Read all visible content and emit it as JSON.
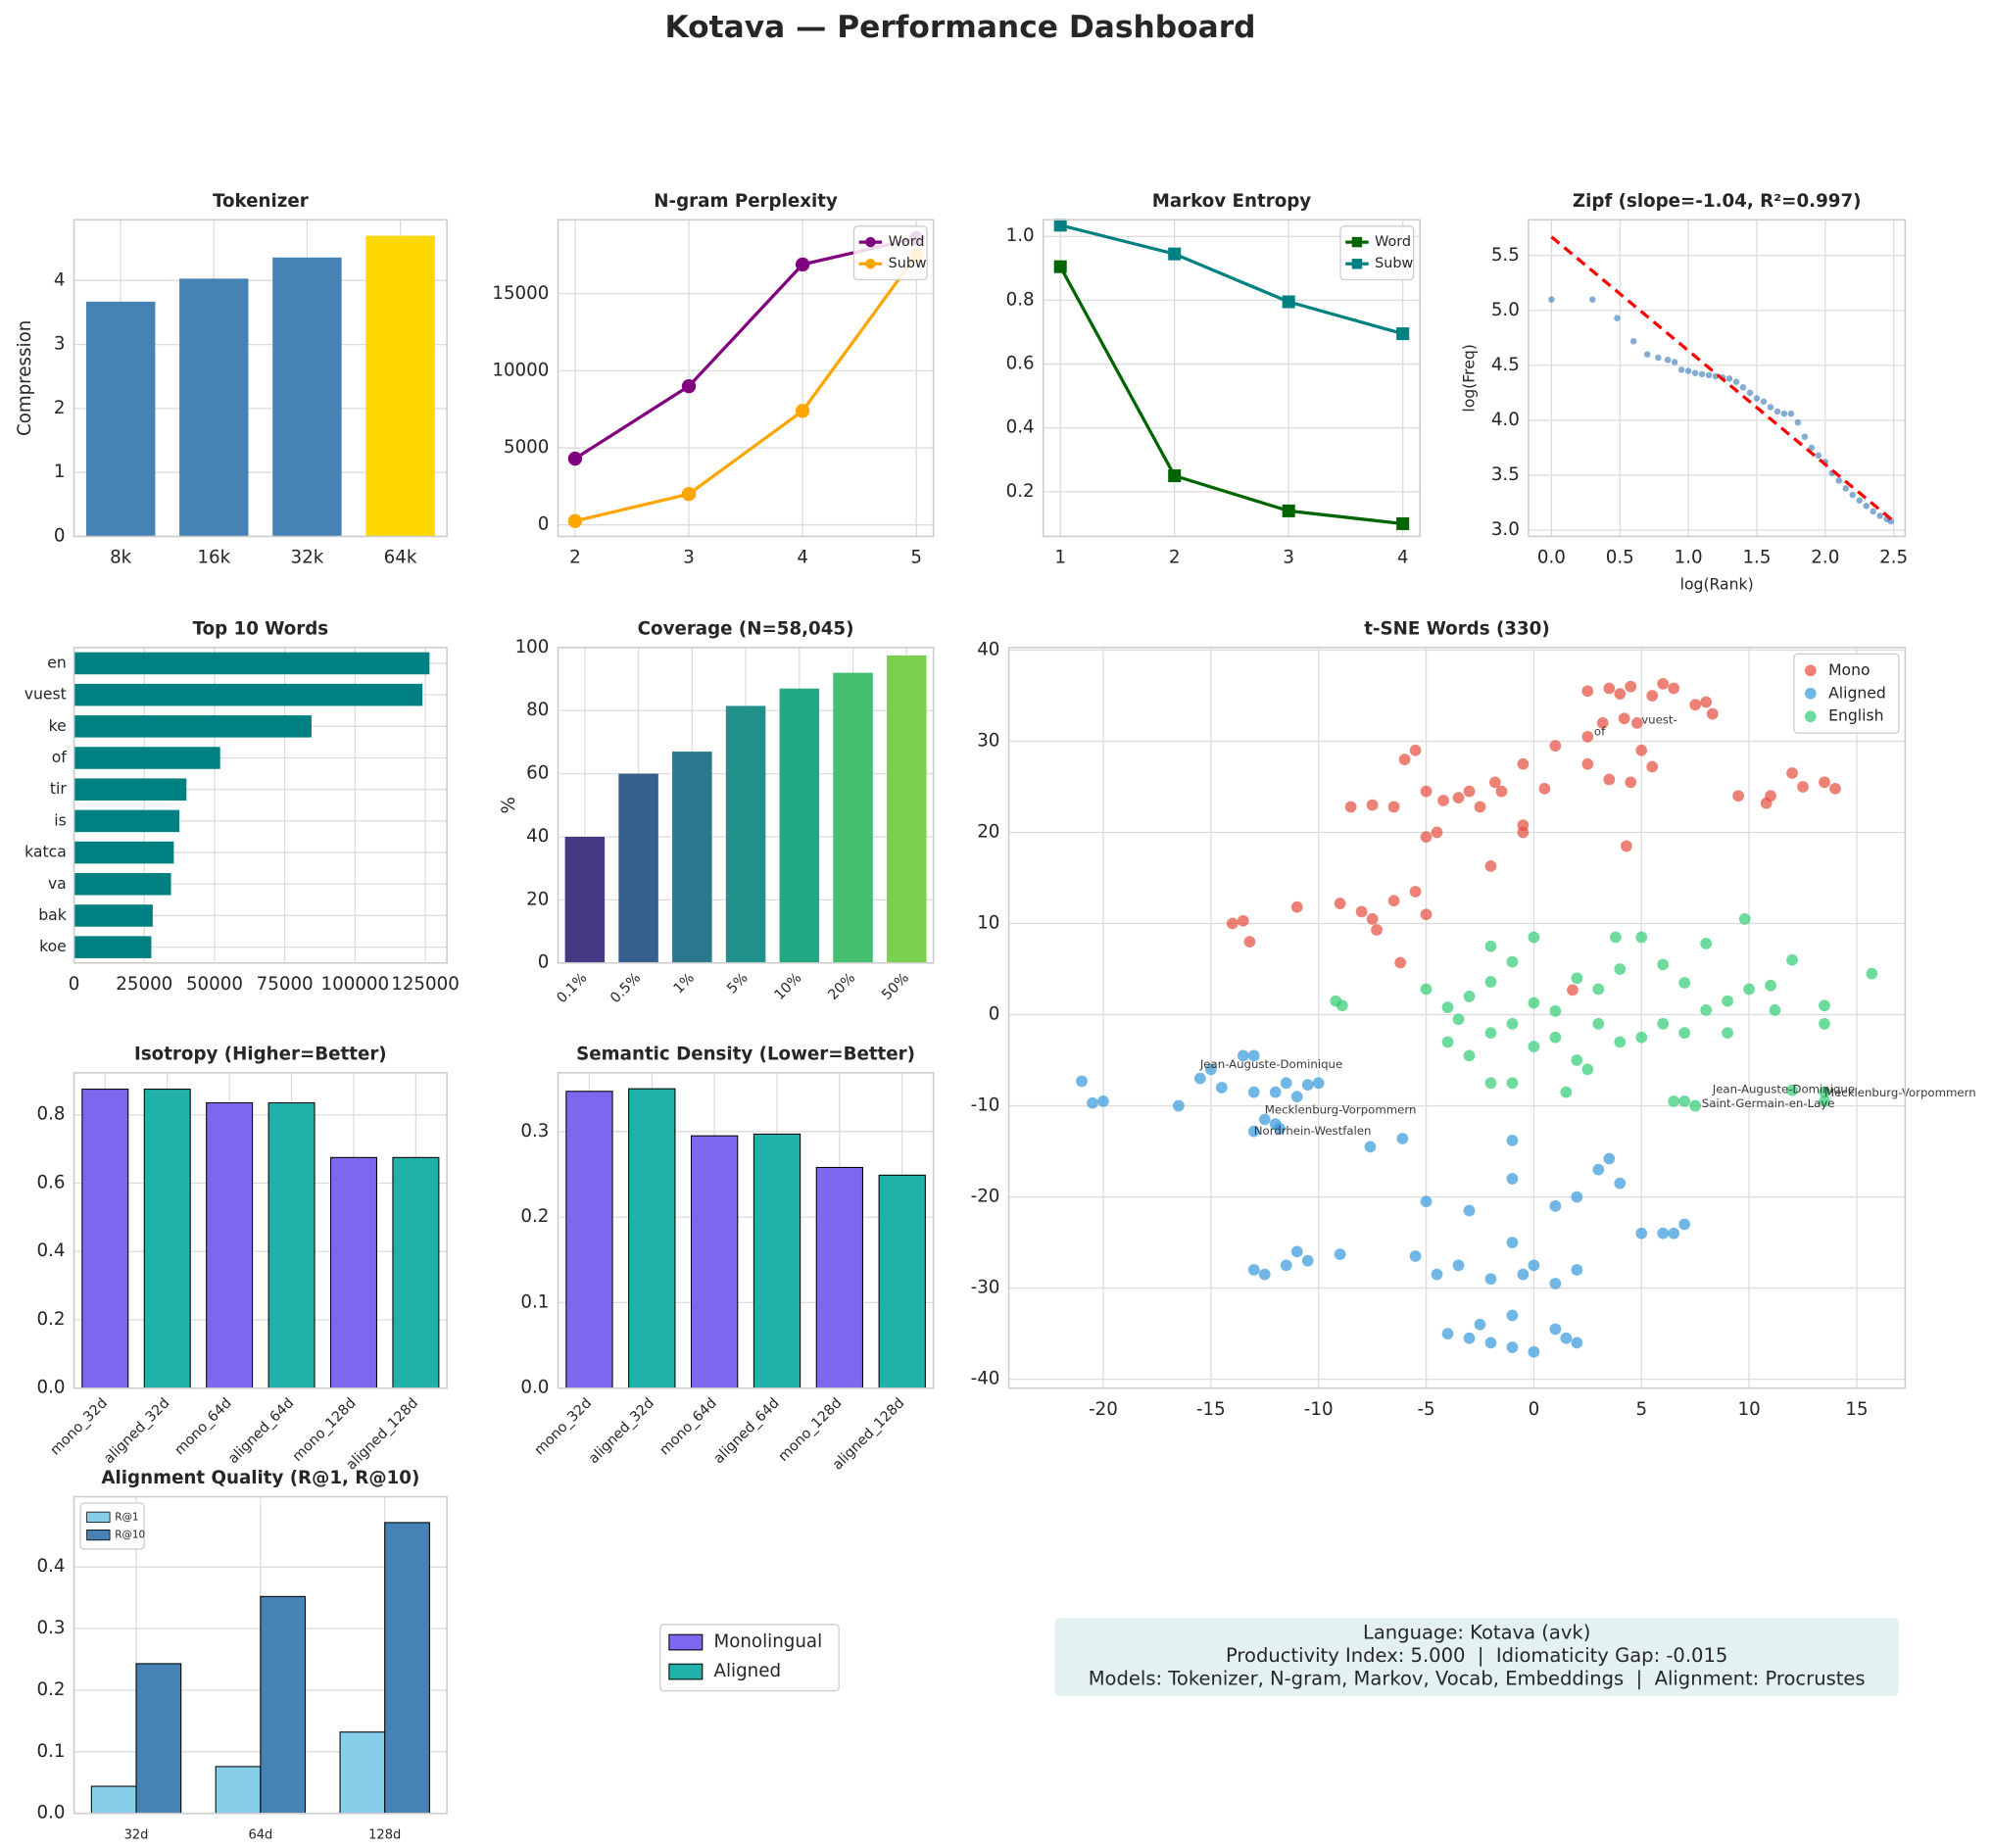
{
  "title": "Kotava — Performance Dashboard",
  "legend": [
    {
      "name": "Monolingual",
      "color": "#7b68ee"
    },
    {
      "name": "Aligned",
      "color": "#20b2aa"
    }
  ],
  "info_box": [
    "Language: Kotava (avk)",
    "Productivity Index: 5.000  |  Idiomaticity Gap: -0.015",
    "Models: Tokenizer, N-gram, Markov, Vocab, Embeddings  |  Alignment: Procrustes"
  ],
  "chart_data": [
    {
      "type": "bar",
      "title": "Tokenizer",
      "ylabel": "Compression",
      "categories": [
        "8k",
        "16k",
        "32k",
        "64k"
      ],
      "values": [
        3.67,
        4.03,
        4.36,
        4.7
      ],
      "colors": [
        "#4682b4",
        "#4682b4",
        "#4682b4",
        "#ffd700"
      ],
      "ylim": [
        0,
        4.95
      ],
      "yticks": [
        0,
        1,
        2,
        3,
        4
      ],
      "grid": true
    },
    {
      "type": "line",
      "title": "N-gram Perplexity",
      "x": [
        2,
        3,
        4,
        5
      ],
      "xlim": [
        1.85,
        5.15
      ],
      "xticks": [
        2,
        3,
        4,
        5
      ],
      "ylim": [
        -750,
        19800
      ],
      "yticks": [
        0,
        5000,
        10000,
        15000
      ],
      "grid": true,
      "marker": "circle",
      "legend": "upper right",
      "series": [
        {
          "name": "Word",
          "color": "#800080",
          "values": [
            4300,
            9000,
            16900,
            18600
          ]
        },
        {
          "name": "Subw",
          "color": "#ffa500",
          "values": [
            250,
            2000,
            7400,
            17500
          ]
        }
      ]
    },
    {
      "type": "line",
      "title": "Markov Entropy",
      "x": [
        1,
        2,
        3,
        4
      ],
      "xlim": [
        0.85,
        4.15
      ],
      "xticks": [
        1,
        2,
        3,
        4
      ],
      "ylim": [
        0.06,
        1.052
      ],
      "yticks": [
        0.2,
        0.4,
        0.6,
        0.8,
        {
          "value": 1,
          "label": "1.0"
        }
      ],
      "grid": true,
      "marker": "square",
      "legend": "upper right",
      "series": [
        {
          "name": "Word",
          "color": "#006400",
          "values": [
            0.905,
            0.25,
            0.14,
            0.1
          ]
        },
        {
          "name": "Subw",
          "color": "#008080",
          "values": [
            1.035,
            0.945,
            0.795,
            0.695
          ]
        }
      ]
    },
    {
      "type": "scatter",
      "title": "Zipf (slope=-1.04, R²=0.997)",
      "xlabel": "log(Rank)",
      "ylabel": "log(Freq)",
      "xlim": [
        -0.168,
        2.584
      ],
      "xticks": [
        {
          "value": 0,
          "label": "0.0"
        },
        0.5,
        {
          "value": 1,
          "label": "1.0"
        },
        1.5,
        {
          "value": 2,
          "label": "2.0"
        },
        2.5
      ],
      "ylim": [
        2.942,
        5.826
      ],
      "yticks": [
        {
          "value": 3,
          "label": "3.0"
        },
        3.5,
        {
          "value": 4,
          "label": "4.0"
        },
        4.5,
        {
          "value": 5,
          "label": "5.0"
        },
        5.5
      ],
      "grid": true,
      "alpha": 0.6,
      "series": [
        {
          "color": "#3274b5",
          "x": [
            0,
            0.3,
            0.48,
            0.6,
            0.7,
            0.78,
            0.85,
            0.9,
            0.95,
            1.0,
            1.05,
            1.1,
            1.15,
            1.2,
            1.25,
            1.3,
            1.35,
            1.4,
            1.45,
            1.5,
            1.55,
            1.6,
            1.65,
            1.7,
            1.75,
            1.8,
            1.85,
            1.9,
            1.95,
            2.0,
            2.05,
            2.1,
            2.15,
            2.2,
            2.25,
            2.3,
            2.35,
            2.4,
            2.45,
            2.48
          ],
          "values": [
            5.1,
            5.1,
            4.93,
            4.72,
            4.6,
            4.57,
            4.55,
            4.53,
            4.46,
            4.45,
            4.43,
            4.42,
            4.41,
            4.4,
            4.39,
            4.38,
            4.35,
            4.3,
            4.25,
            4.2,
            4.17,
            4.12,
            4.08,
            4.06,
            4.06,
            3.98,
            3.85,
            3.75,
            3.68,
            3.62,
            3.52,
            3.45,
            3.38,
            3.32,
            3.27,
            3.22,
            3.17,
            3.13,
            3.1,
            3.08
          ]
        }
      ],
      "fit": {
        "x": [
          0,
          2.5
        ],
        "y": [
          5.67,
          3.08
        ],
        "color": "#ff0000"
      }
    },
    {
      "type": "barh",
      "title": "Top 10 Words",
      "categories": [
        "en",
        "vuest",
        "ke",
        "of",
        "tir",
        "is",
        "katca",
        "va",
        "bak",
        "koe"
      ],
      "values": [
        126500,
        124000,
        84500,
        52000,
        40000,
        37500,
        35500,
        34500,
        28000,
        27500
      ],
      "color": "#008080",
      "xlim": [
        0,
        132700
      ],
      "xticks": [
        0,
        25000,
        50000,
        75000,
        100000,
        125000
      ],
      "grid": true
    },
    {
      "type": "bar",
      "title": "Coverage (N=58,045)",
      "ylabel": "%",
      "categories": [
        "0.1%",
        "0.5%",
        "1%",
        "5%",
        "10%",
        "20%",
        "50%"
      ],
      "values": [
        40,
        60,
        67,
        81.5,
        87,
        92,
        97.5
      ],
      "colors": [
        "#443983",
        "#355f8d",
        "#2a788e",
        "#21918c",
        "#22a884",
        "#44bf70",
        "#7ad151"
      ],
      "ylim": [
        0,
        100
      ],
      "yticks": [
        0,
        20,
        40,
        60,
        80,
        100
      ],
      "grid": true,
      "xtick_rotation": 45
    },
    {
      "type": "scatter",
      "title": "t-SNE Words (330)",
      "xlim": [
        -24.39,
        17.25
      ],
      "xticks": [
        -20,
        -15,
        -10,
        -5,
        0,
        5,
        10,
        15
      ],
      "ylim": [
        -40.98,
        40.28
      ],
      "yticks": [
        -40,
        -30,
        -20,
        -10,
        0,
        10,
        20,
        30,
        40
      ],
      "grid": true,
      "alpha": 0.7,
      "legend": "upper right",
      "series": [
        {
          "name": "Mono",
          "color": "#e74c3c",
          "x": [
            2.5,
            3.5,
            4,
            4.5,
            5.5,
            6,
            6.5,
            7.5,
            8,
            8.3,
            3.2,
            4.2,
            4.8,
            2.5,
            1,
            -0.5,
            -1.8,
            -3,
            -5.5,
            -6,
            -8.5,
            -7.5,
            -6.5,
            -5,
            -4.2,
            -3.5,
            -2.5,
            -1.5,
            0.5,
            -5,
            -4.5,
            -0.5,
            -0.5,
            2.5,
            3.5,
            4.5,
            4.3,
            -2,
            -14,
            -13.5,
            -13.2,
            -11,
            -9,
            -8,
            -7.5,
            -6.5,
            -5.5,
            -5,
            -6.2,
            9.5,
            11,
            12,
            12.5,
            13.5,
            14,
            1.8,
            5,
            5.5,
            10.8,
            -7.3
          ],
          "values": [
            35.5,
            35.8,
            35.2,
            36,
            35,
            36.3,
            35.8,
            34,
            34.3,
            33,
            32,
            32.5,
            32,
            30.5,
            29.5,
            27.5,
            25.5,
            24.5,
            29,
            28,
            22.8,
            23,
            22.8,
            24.5,
            23.5,
            23.8,
            22.8,
            24.5,
            24.8,
            19.5,
            20,
            20.8,
            20,
            27.5,
            25.8,
            25.5,
            18.5,
            16.3,
            10,
            10.3,
            8,
            11.8,
            12.2,
            11.3,
            10.5,
            12.5,
            13.5,
            11,
            5.7,
            24,
            24,
            26.5,
            25,
            25.5,
            24.8,
            2.7,
            29,
            27.2,
            23.2,
            9.3
          ]
        },
        {
          "name": "Aligned",
          "color": "#3498db",
          "x": [
            -21,
            -20.5,
            -20,
            -16.5,
            -15.5,
            -15,
            -14.5,
            -13.5,
            -13,
            -13,
            -12,
            -11.5,
            -11,
            -10,
            -10.5,
            -12.5,
            -13,
            -12,
            -11.8,
            -7.6,
            -6.1,
            -1,
            -5,
            -3,
            -1,
            1,
            2,
            3,
            3.5,
            4,
            -13,
            -12.5,
            -11.5,
            -11,
            -10.5,
            -9,
            -5.5,
            -4.5,
            -3.5,
            -2,
            -1,
            -0.5,
            0,
            1,
            2,
            5,
            6,
            7,
            6.5,
            -4,
            -3,
            -2,
            -1,
            0,
            1,
            2,
            -1,
            1.5,
            -2.5
          ],
          "values": [
            -7.3,
            -9.7,
            -9.5,
            -10,
            -7,
            -6,
            -8,
            -4.5,
            -4.5,
            -8.5,
            -8.5,
            -7.5,
            -9,
            -7.5,
            -7.7,
            -11.5,
            -12.8,
            -12,
            -12.5,
            -14.5,
            -13.6,
            -13.8,
            -20.5,
            -21.5,
            -18,
            -21,
            -20,
            -17,
            -15.8,
            -18.5,
            -28,
            -28.5,
            -27.5,
            -26,
            -27,
            -26.3,
            -26.5,
            -28.5,
            -27.5,
            -29,
            -25,
            -28.5,
            -27.5,
            -29.5,
            -28,
            -24,
            -24,
            -23,
            -24,
            -35,
            -35.5,
            -36,
            -36.5,
            -37,
            -34.5,
            -36,
            -33,
            -35.5,
            -34
          ]
        },
        {
          "name": "English",
          "color": "#2ecc71",
          "x": [
            -5,
            -4,
            -3,
            -2,
            -1,
            0,
            1,
            2,
            3,
            4,
            5,
            6,
            7,
            8,
            9,
            10,
            11,
            12,
            -4,
            -3,
            -2,
            -1,
            0,
            1,
            2,
            3,
            4,
            5,
            6,
            7,
            8,
            9,
            -2,
            -1,
            2.5,
            6.5,
            7,
            7.5,
            12,
            13.5,
            13.5,
            15.7,
            13.5,
            13.5,
            -8.9,
            -9.2,
            9.8,
            -2,
            0,
            3.8,
            -3.5,
            11.2,
            1.5
          ],
          "values": [
            2.8,
            0.8,
            2,
            3.6,
            5.8,
            1.3,
            0.4,
            4,
            2.8,
            5,
            8.5,
            5.5,
            3.5,
            7.8,
            1.5,
            2.8,
            3.2,
            6,
            -3,
            -4.5,
            -2,
            -1,
            -3.5,
            -2.5,
            -5,
            -1,
            -3,
            -2.5,
            -1,
            -2,
            0.5,
            -2,
            -7.5,
            -7.5,
            -6,
            -9.5,
            -9.5,
            -10,
            -8.3,
            -8.5,
            -9.5,
            4.5,
            1,
            -1,
            1,
            1.5,
            10.5,
            7.5,
            8.5,
            8.5,
            -0.5,
            0.5,
            -8.5
          ]
        }
      ],
      "annotations": [
        {
          "text": "Jean-Auguste-Dominique",
          "x": -15.5,
          "y": -5.5,
          "color": "#3498db"
        },
        {
          "text": "Mecklenburg-Vorpommern",
          "x": -12.5,
          "y": -10.5,
          "color": "#3498db"
        },
        {
          "text": "Nordrhein-Westfalen",
          "x": -13,
          "y": -12.8,
          "color": "#3498db"
        },
        {
          "text": "Saint-Germain-en-Laye",
          "x": 7.8,
          "y": -9.8,
          "color": "#2ecc71"
        },
        {
          "text": "Jean-Auguste-Dominique",
          "x": 8.3,
          "y": -8.2,
          "color": "#2ecc71"
        },
        {
          "text": "Mecklenburg-Vorpommern",
          "x": 13.5,
          "y": -8.6,
          "color": "#2ecc71"
        },
        {
          "text": "of",
          "x": 2.8,
          "y": 31,
          "color": "#e74c3c"
        },
        {
          "text": "vuest-",
          "x": 5,
          "y": 32.3,
          "color": "#e74c3c"
        }
      ]
    },
    {
      "type": "bar",
      "title": "Isotropy (Higher=Better)",
      "categories": [
        "mono_32d",
        "aligned_32d",
        "mono_64d",
        "aligned_64d",
        "mono_128d",
        "aligned_128d"
      ],
      "values": [
        0.875,
        0.875,
        0.835,
        0.835,
        0.675,
        0.675
      ],
      "colors": [
        "#7b68ee",
        "#20b2aa",
        "#7b68ee",
        "#20b2aa",
        "#7b68ee",
        "#20b2aa"
      ],
      "edgecolor": "#000000",
      "ylim": [
        0,
        0.923
      ],
      "yticks": [
        {
          "value": 0,
          "label": "0.0"
        },
        0.2,
        0.4,
        0.6,
        0.8
      ],
      "grid": true,
      "xtick_rotation": 45
    },
    {
      "type": "bar",
      "title": "Semantic Density (Lower=Better)",
      "categories": [
        "mono_32d",
        "aligned_32d",
        "mono_64d",
        "aligned_64d",
        "mono_128d",
        "aligned_128d"
      ],
      "values": [
        0.347,
        0.35,
        0.295,
        0.297,
        0.258,
        0.249
      ],
      "colors": [
        "#7b68ee",
        "#20b2aa",
        "#7b68ee",
        "#20b2aa",
        "#7b68ee",
        "#20b2aa"
      ],
      "edgecolor": "#000000",
      "ylim": [
        0,
        0.3687
      ],
      "yticks": [
        {
          "value": 0,
          "label": "0.0"
        },
        0.1,
        0.2,
        0.3
      ],
      "grid": true,
      "xtick_rotation": 45
    },
    {
      "type": "grouped_bar",
      "title": "Alignment Quality (R@1, R@10)",
      "categories": [
        "32d",
        "64d",
        "128d"
      ],
      "edgecolor": "#000000",
      "ylim": [
        0,
        0.514
      ],
      "yticks": [
        {
          "value": 0,
          "label": "0.0"
        },
        0.1,
        0.2,
        0.3,
        0.4
      ],
      "grid": true,
      "legend": "upper left",
      "series": [
        {
          "name": "R@1",
          "color": "#87ceeb",
          "values": [
            0.044,
            0.076,
            0.132
          ]
        },
        {
          "name": "R@10",
          "color": "#4682b4",
          "values": [
            0.243,
            0.352,
            0.472
          ]
        }
      ]
    }
  ]
}
